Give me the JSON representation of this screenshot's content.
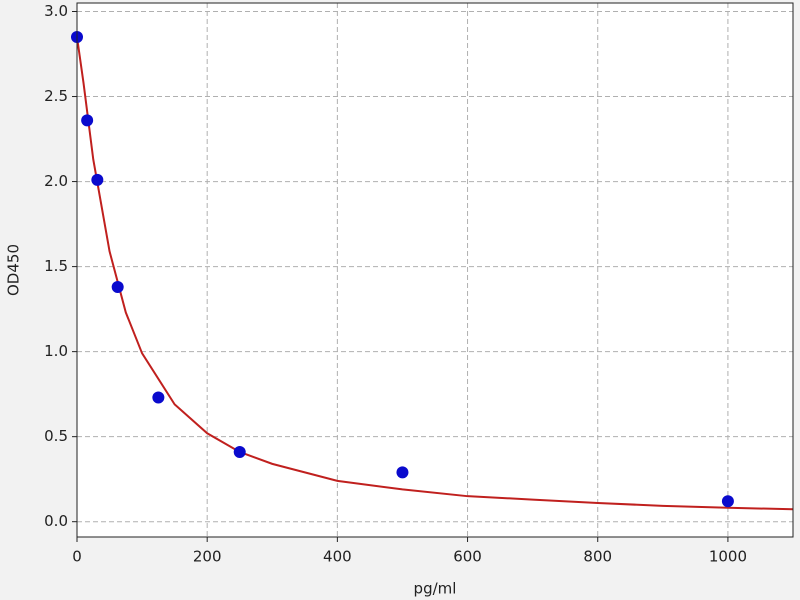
{
  "chart_data": {
    "type": "scatter",
    "x_label": "pg/ml",
    "y_label": "OD450",
    "xlim": [
      0,
      1100
    ],
    "ylim": [
      -0.09,
      3.05
    ],
    "xticks": [
      0,
      200,
      400,
      600,
      800,
      1000
    ],
    "yticks": [
      {
        "value": 0,
        "label": "0.0"
      },
      0.5,
      {
        "value": 1,
        "label": "1.0"
      },
      1.5,
      {
        "value": 2,
        "label": "2.0"
      },
      2.5,
      {
        "value": 3,
        "label": "3.0"
      }
    ],
    "grid": true,
    "series": [
      {
        "type": "scatter",
        "color": "#0a0acd",
        "x": [
          0,
          15.6,
          31.25,
          62.5,
          125,
          250,
          500,
          1000
        ],
        "values": [
          2.85,
          2.36,
          2.01,
          1.38,
          0.73,
          0.41,
          0.29,
          0.12
        ]
      },
      {
        "type": "line",
        "color": "#c0201e",
        "x": [
          0,
          10,
          25,
          50,
          75,
          100,
          150,
          200,
          250,
          300,
          400,
          500,
          600,
          700,
          800,
          900,
          1000,
          1100
        ],
        "values": [
          2.85,
          2.58,
          2.13,
          1.59,
          1.23,
          0.99,
          0.69,
          0.52,
          0.41,
          0.34,
          0.24,
          0.19,
          0.15,
          0.13,
          0.11,
          0.093,
          0.082,
          0.073
        ]
      }
    ]
  }
}
